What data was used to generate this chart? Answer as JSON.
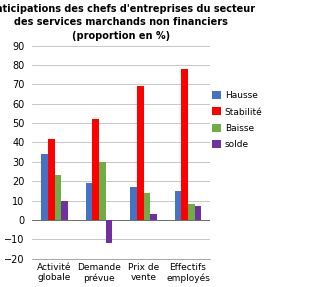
{
  "title_line1": "Anticipations des chefs d'entreprises du secteur",
  "title_line2": "des services marchands non financiers",
  "title_line3": "(proportion en %)",
  "categories": [
    "Activité\nglobale",
    "Demande\nprévue",
    "Prix de\nvente",
    "Effectifs\nemployés"
  ],
  "series": {
    "Hausse": [
      34,
      19,
      17,
      15
    ],
    "Stabilité": [
      42,
      52,
      69,
      78
    ],
    "Baisse": [
      23,
      30,
      14,
      8
    ],
    "solde": [
      10,
      -12,
      3,
      7
    ]
  },
  "colors": {
    "Hausse": "#4472C4",
    "Stabilité": "#FF0000",
    "Baisse": "#70AD47",
    "solde": "#7030A0"
  },
  "ylim": [
    -20,
    90
  ],
  "yticks": [
    -20,
    -10,
    0,
    10,
    20,
    30,
    40,
    50,
    60,
    70,
    80,
    90
  ],
  "background_color": "#FFFFFF",
  "plot_bg_color": "#FFFFFF",
  "grid_color": "#B0B0B0"
}
